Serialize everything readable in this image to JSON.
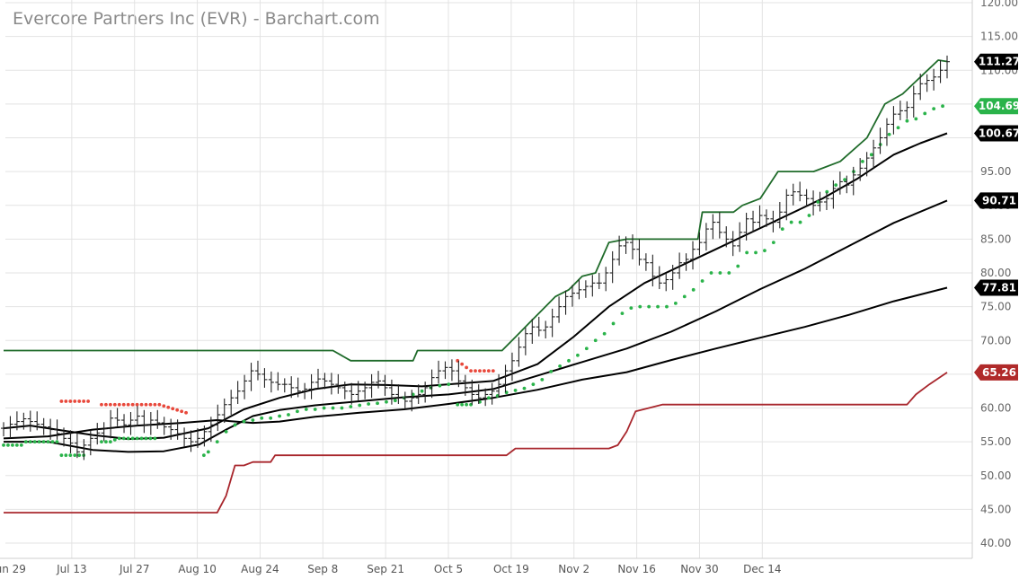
{
  "title": "Evercore Partners Inc (EVR) - Barchart.com",
  "chart_data": {
    "type": "ohlc",
    "title": "Evercore Partners Inc (EVR) - Barchart.com",
    "ylim": [
      40,
      120
    ],
    "y_ticks": [
      "40.00",
      "45.00",
      "50.00",
      "55.00",
      "60.00",
      "65.00",
      "70.00",
      "75.00",
      "80.00",
      "85.00",
      "90.00",
      "95.00",
      "100.00",
      "105.00",
      "110.00",
      "115.00",
      "120.00"
    ],
    "x_ticks": [
      "Jun 29",
      "Jul 13",
      "Jul 27",
      "Aug 10",
      "Aug 24",
      "Sep 8",
      "Sep 21",
      "Oct 5",
      "Oct 19",
      "Nov 2",
      "Nov 16",
      "Nov 30",
      "Dec 14"
    ],
    "grid": true,
    "price_tags": [
      {
        "value": 111.27,
        "label": "111.27",
        "color": "#000000"
      },
      {
        "value": 104.69,
        "label": "104.69",
        "color": "#2ab34a"
      },
      {
        "value": 100.67,
        "label": "100.67",
        "color": "#000000"
      },
      {
        "value": 90.71,
        "label": "90.71",
        "color": "#000000"
      },
      {
        "value": 77.81,
        "label": "77.81",
        "color": "#000000"
      },
      {
        "value": 65.26,
        "label": "65.26",
        "color": "#b02a2a"
      }
    ],
    "closes": [
      57.0,
      57.6,
      58.0,
      58.4,
      58.0,
      57.6,
      57.2,
      56.8,
      56.2,
      55.5,
      54.8,
      53.5,
      54.5,
      55.5,
      56.3,
      57.0,
      58.5,
      58.2,
      57.5,
      58.2,
      58.8,
      57.5,
      58.2,
      57.8,
      57.2,
      56.8,
      56.2,
      55.5,
      55.0,
      55.5,
      56.5,
      57.5,
      59.0,
      60.5,
      61.5,
      62.5,
      64.0,
      65.5,
      65.0,
      64.2,
      63.8,
      63.5,
      63.5,
      63.0,
      62.5,
      62.8,
      63.8,
      64.3,
      64.0,
      63.5,
      63.0,
      62.5,
      62.0,
      62.5,
      63.0,
      63.8,
      64.0,
      63.0,
      62.0,
      61.5,
      61.0,
      61.5,
      62.0,
      63.0,
      64.5,
      65.5,
      66.0,
      65.5,
      64.0,
      63.0,
      62.0,
      61.5,
      62.0,
      62.5,
      63.5,
      65.5,
      67.0,
      69.0,
      71.0,
      72.0,
      71.5,
      72.0,
      73.5,
      75.0,
      76.5,
      77.0,
      77.5,
      78.0,
      78.5,
      78.5,
      80.0,
      82.0,
      84.0,
      84.5,
      83.5,
      82.0,
      81.5,
      79.5,
      78.5,
      79.0,
      80.0,
      81.5,
      82.0,
      83.5,
      84.5,
      86.5,
      87.5,
      86.0,
      85.0,
      84.0,
      86.0,
      88.0,
      87.5,
      88.5,
      88.0,
      87.5,
      89.0,
      91.5,
      92.0,
      91.5,
      91.0,
      90.0,
      90.5,
      91.0,
      92.5,
      93.5,
      93.0,
      94.5,
      95.5,
      97.0,
      98.5,
      100.0,
      102.0,
      103.5,
      104.0,
      104.5,
      106.5,
      108.0,
      108.5,
      109.0,
      110.0,
      111.27
    ],
    "series": [
      {
        "name": "",
        "color": "#1f6b2a",
        "points": [
          [
            0,
            68.5
          ],
          [
            74,
            68.5
          ],
          [
            78,
            67.0
          ],
          [
            92,
            67.0
          ],
          [
            93,
            68.5
          ],
          [
            112,
            68.5
          ],
          [
            115,
            70.5
          ],
          [
            118,
            72.5
          ],
          [
            121,
            74.5
          ],
          [
            124,
            76.5
          ],
          [
            127,
            77.5
          ],
          [
            130,
            79.5
          ],
          [
            133,
            80.0
          ],
          [
            136,
            84.5
          ],
          [
            140,
            85.0
          ],
          [
            148,
            85.0
          ],
          [
            152,
            85.0
          ],
          [
            156,
            85.0
          ],
          [
            157,
            89.0
          ],
          [
            164,
            89.0
          ],
          [
            166,
            90.0
          ],
          [
            170,
            91.0
          ],
          [
            174,
            95.0
          ],
          [
            182,
            95.0
          ],
          [
            188,
            96.5
          ],
          [
            194,
            100.0
          ],
          [
            198,
            105.0
          ],
          [
            202,
            106.5
          ],
          [
            206,
            109.0
          ],
          [
            210,
            111.5
          ],
          [
            212,
            111.3
          ]
        ]
      },
      {
        "name": "",
        "color": "#a8262c",
        "points": [
          [
            0,
            44.5
          ],
          [
            48,
            44.5
          ],
          [
            50,
            47.0
          ],
          [
            52,
            51.5
          ],
          [
            54,
            51.5
          ],
          [
            56,
            52.0
          ],
          [
            60,
            52.0
          ],
          [
            61,
            53.0
          ],
          [
            113,
            53.0
          ],
          [
            115,
            54.0
          ],
          [
            136,
            54.0
          ],
          [
            138,
            54.5
          ],
          [
            140,
            56.5
          ],
          [
            142,
            59.5
          ],
          [
            145,
            60.0
          ],
          [
            148,
            60.5
          ],
          [
            186,
            60.5
          ],
          [
            203,
            60.5
          ],
          [
            205,
            62.0
          ],
          [
            208,
            63.5
          ],
          [
            212,
            65.26
          ]
        ]
      },
      {
        "name": "",
        "color": "#000000",
        "points": [
          [
            0,
            57.0
          ],
          [
            6,
            57.4
          ],
          [
            12,
            56.8
          ],
          [
            20,
            56.0
          ],
          [
            28,
            55.4
          ],
          [
            36,
            55.6
          ],
          [
            46,
            57.0
          ],
          [
            54,
            59.8
          ],
          [
            62,
            61.5
          ],
          [
            70,
            62.8
          ],
          [
            78,
            63.5
          ],
          [
            86,
            63.4
          ],
          [
            94,
            63.2
          ],
          [
            102,
            63.6
          ],
          [
            110,
            64.0
          ],
          [
            120,
            66.5
          ],
          [
            128,
            70.5
          ],
          [
            136,
            75.0
          ],
          [
            144,
            78.5
          ],
          [
            152,
            81.0
          ],
          [
            160,
            83.5
          ],
          [
            168,
            86.0
          ],
          [
            176,
            88.5
          ],
          [
            184,
            91.0
          ],
          [
            192,
            94.0
          ],
          [
            200,
            97.5
          ],
          [
            206,
            99.2
          ],
          [
            212,
            100.67
          ]
        ]
      },
      {
        "name": "",
        "color": "#000000",
        "points": [
          [
            0,
            55.0
          ],
          [
            10,
            55.0
          ],
          [
            20,
            53.8
          ],
          [
            28,
            53.5
          ],
          [
            36,
            53.6
          ],
          [
            44,
            54.6
          ],
          [
            50,
            56.8
          ],
          [
            56,
            58.8
          ],
          [
            62,
            59.7
          ],
          [
            70,
            60.4
          ],
          [
            80,
            61.0
          ],
          [
            90,
            61.6
          ],
          [
            100,
            62.0
          ],
          [
            110,
            62.8
          ],
          [
            120,
            64.8
          ],
          [
            130,
            66.8
          ],
          [
            140,
            68.8
          ],
          [
            150,
            71.3
          ],
          [
            160,
            74.3
          ],
          [
            170,
            77.6
          ],
          [
            180,
            80.6
          ],
          [
            190,
            84.0
          ],
          [
            200,
            87.4
          ],
          [
            212,
            90.71
          ]
        ]
      },
      {
        "name": "",
        "color": "#000000",
        "points": [
          [
            0,
            55.5
          ],
          [
            10,
            55.8
          ],
          [
            20,
            56.8
          ],
          [
            30,
            57.4
          ],
          [
            40,
            57.8
          ],
          [
            48,
            58.2
          ],
          [
            56,
            57.8
          ],
          [
            62,
            58.0
          ],
          [
            70,
            58.7
          ],
          [
            80,
            59.3
          ],
          [
            90,
            59.8
          ],
          [
            100,
            60.6
          ],
          [
            110,
            61.5
          ],
          [
            120,
            62.7
          ],
          [
            130,
            64.2
          ],
          [
            140,
            65.3
          ],
          [
            150,
            67.1
          ],
          [
            160,
            68.8
          ],
          [
            170,
            70.4
          ],
          [
            180,
            72.0
          ],
          [
            190,
            73.8
          ],
          [
            200,
            75.8
          ],
          [
            212,
            77.81
          ]
        ]
      }
    ],
    "sar_dots": {
      "red": [
        [
          13,
          61.0
        ],
        [
          14,
          61.0
        ],
        [
          15,
          61.0
        ],
        [
          16,
          61.0
        ],
        [
          17,
          61.0
        ],
        [
          18,
          61.0
        ],
        [
          19,
          61.0
        ],
        [
          22,
          60.5
        ],
        [
          23,
          60.5
        ],
        [
          24,
          60.5
        ],
        [
          25,
          60.5
        ],
        [
          26,
          60.5
        ],
        [
          27,
          60.5
        ],
        [
          28,
          60.5
        ],
        [
          29,
          60.5
        ],
        [
          30,
          60.5
        ],
        [
          31,
          60.5
        ],
        [
          32,
          60.5
        ],
        [
          33,
          60.5
        ],
        [
          34,
          60.5
        ],
        [
          35,
          60.5
        ],
        [
          36,
          60.3
        ],
        [
          37,
          60.1
        ],
        [
          38,
          59.9
        ],
        [
          39,
          59.7
        ],
        [
          40,
          59.5
        ],
        [
          41,
          59.3
        ],
        [
          102,
          67.0
        ],
        [
          103,
          66.5
        ],
        [
          104,
          66.0
        ],
        [
          105,
          65.5
        ],
        [
          106,
          65.5
        ],
        [
          107,
          65.5
        ],
        [
          108,
          65.5
        ],
        [
          109,
          65.5
        ],
        [
          110,
          65.5
        ]
      ],
      "green": [
        [
          0,
          54.5
        ],
        [
          1,
          54.5
        ],
        [
          2,
          54.5
        ],
        [
          3,
          54.5
        ],
        [
          4,
          54.5
        ],
        [
          5,
          55.0
        ],
        [
          6,
          55.0
        ],
        [
          7,
          55.0
        ],
        [
          8,
          55.0
        ],
        [
          9,
          55.0
        ],
        [
          10,
          55.0
        ],
        [
          11,
          55.0
        ],
        [
          12,
          55.0
        ],
        [
          13,
          53.0
        ],
        [
          14,
          53.0
        ],
        [
          15,
          53.0
        ],
        [
          16,
          53.0
        ],
        [
          17,
          53.0
        ],
        [
          18,
          53.0
        ],
        [
          22,
          55.0
        ],
        [
          23,
          55.0
        ],
        [
          24,
          55.0
        ],
        [
          25,
          55.3
        ],
        [
          26,
          55.5
        ],
        [
          27,
          55.5
        ],
        [
          28,
          55.5
        ],
        [
          29,
          55.5
        ],
        [
          30,
          55.5
        ],
        [
          31,
          55.5
        ],
        [
          32,
          55.5
        ],
        [
          33,
          55.5
        ],
        [
          34,
          55.5
        ],
        [
          45,
          53.0
        ],
        [
          46,
          53.5
        ],
        [
          48,
          55.0
        ],
        [
          50,
          56.5
        ],
        [
          52,
          57.5
        ],
        [
          54,
          58.0
        ],
        [
          56,
          58.2
        ],
        [
          58,
          58.5
        ],
        [
          60,
          58.5
        ],
        [
          62,
          58.8
        ],
        [
          64,
          59.0
        ],
        [
          66,
          59.5
        ],
        [
          68,
          59.8
        ],
        [
          70,
          59.8
        ],
        [
          72,
          60.0
        ],
        [
          74,
          60.0
        ],
        [
          76,
          60.0
        ],
        [
          78,
          60.2
        ],
        [
          80,
          60.4
        ],
        [
          82,
          60.6
        ],
        [
          84,
          60.7
        ],
        [
          86,
          60.9
        ],
        [
          88,
          61.1
        ],
        [
          90,
          61.5
        ],
        [
          92,
          62.0
        ],
        [
          94,
          62.5
        ],
        [
          96,
          63.0
        ],
        [
          98,
          63.3
        ],
        [
          100,
          63.5
        ],
        [
          102,
          60.5
        ],
        [
          103,
          60.5
        ],
        [
          104,
          60.5
        ],
        [
          105,
          60.5
        ],
        [
          107,
          60.9
        ],
        [
          109,
          61.5
        ],
        [
          111,
          61.8
        ],
        [
          113,
          62.3
        ],
        [
          115,
          62.6
        ],
        [
          117,
          62.9
        ],
        [
          119,
          63.5
        ],
        [
          121,
          64.2
        ],
        [
          123,
          65.4
        ],
        [
          125,
          66.2
        ],
        [
          127,
          67.0
        ],
        [
          129,
          67.8
        ],
        [
          131,
          68.8
        ],
        [
          133,
          70.0
        ],
        [
          135,
          71.0
        ],
        [
          137,
          72.5
        ],
        [
          139,
          74.0
        ],
        [
          141,
          74.8
        ],
        [
          143,
          75.0
        ],
        [
          145,
          75.0
        ],
        [
          147,
          75.0
        ],
        [
          149,
          75.0
        ],
        [
          151,
          75.5
        ],
        [
          153,
          76.5
        ],
        [
          155,
          77.5
        ],
        [
          157,
          78.8
        ],
        [
          159,
          80.0
        ],
        [
          161,
          80.0
        ],
        [
          163,
          80.0
        ],
        [
          165,
          81.0
        ],
        [
          167,
          83.0
        ],
        [
          169,
          83.0
        ],
        [
          171,
          83.3
        ],
        [
          173,
          84.5
        ],
        [
          175,
          86.5
        ],
        [
          177,
          87.5
        ],
        [
          179,
          87.5
        ],
        [
          181,
          88.5
        ],
        [
          183,
          90.5
        ],
        [
          185,
          92.0
        ],
        [
          187,
          93.0
        ],
        [
          189,
          93.8
        ],
        [
          191,
          95.0
        ],
        [
          193,
          96.5
        ],
        [
          195,
          97.5
        ],
        [
          197,
          99.0
        ],
        [
          199,
          100.5
        ],
        [
          201,
          101.5
        ],
        [
          203,
          102.5
        ],
        [
          205,
          102.8
        ],
        [
          207,
          103.6
        ],
        [
          209,
          104.3
        ],
        [
          211,
          104.69
        ]
      ]
    }
  }
}
